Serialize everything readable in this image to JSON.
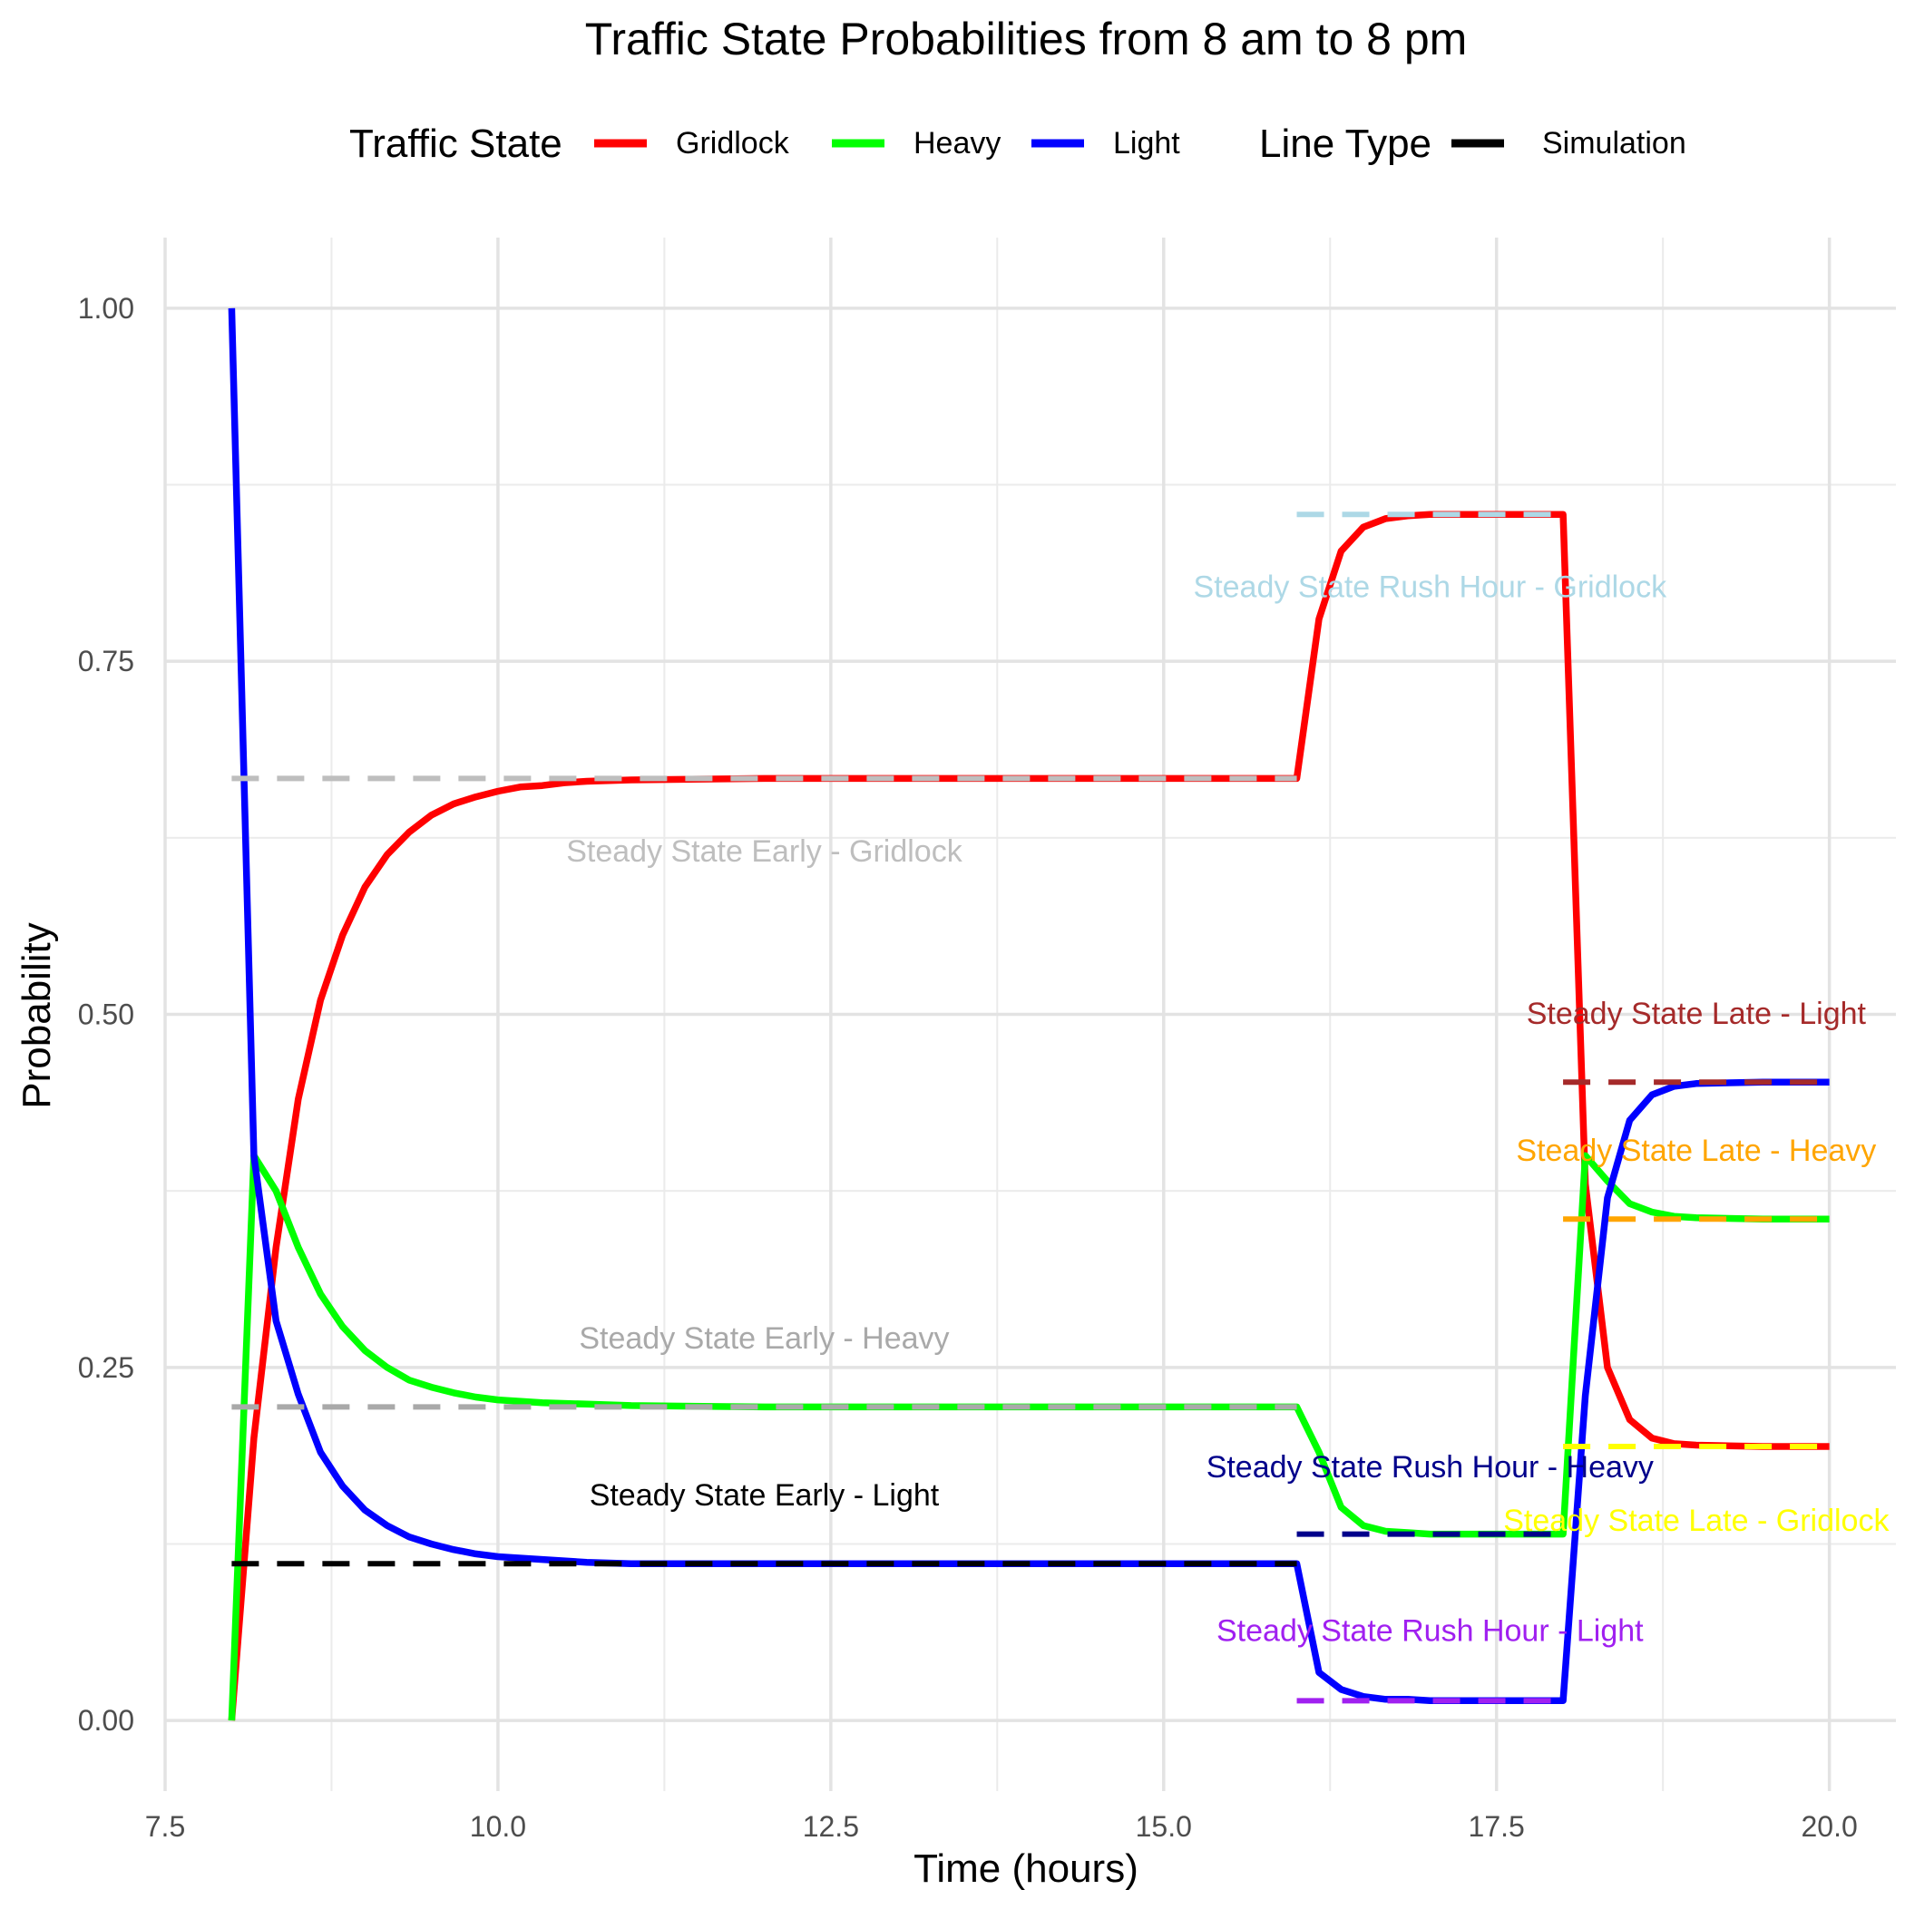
{
  "chart_data": {
    "type": "line",
    "title": "Traffic State Probabilities from 8 am to 8 pm",
    "xlabel": "Time (hours)",
    "ylabel": "Probability",
    "xlim": [
      7.5,
      20.5
    ],
    "ylim": [
      -0.05,
      1.05
    ],
    "x_ticks": [
      7.5,
      10.0,
      12.5,
      15.0,
      17.5,
      20.0
    ],
    "x_tick_labels": [
      "7.5",
      "10.0",
      "12.5",
      "15.0",
      "17.5",
      "20.0"
    ],
    "y_ticks": [
      0.0,
      0.25,
      0.5,
      0.75,
      1.0
    ],
    "y_tick_labels": [
      "0.00",
      "0.25",
      "0.50",
      "0.75",
      "1.00"
    ],
    "grid": true,
    "legend": {
      "position": "top",
      "traffic_state_title": "Traffic State",
      "traffic_state_items": [
        {
          "label": "Gridlock",
          "color": "#ff0000"
        },
        {
          "label": "Heavy",
          "color": "#00ff00"
        },
        {
          "label": "Light",
          "color": "#0000ff"
        }
      ],
      "line_type_title": "Line Type",
      "line_type_items": [
        {
          "label": "Simulation",
          "color": "#000000"
        }
      ]
    },
    "series": [
      {
        "name": "Gridlock",
        "color": "#ff0000",
        "x": [
          8.0,
          8.167,
          8.333,
          8.5,
          8.667,
          8.833,
          9.0,
          9.167,
          9.333,
          9.5,
          9.667,
          9.833,
          10.0,
          10.167,
          10.333,
          10.5,
          10.667,
          11.0,
          12.0,
          13.0,
          14.0,
          15.0,
          15.833,
          16.0,
          16.167,
          16.333,
          16.5,
          16.667,
          16.833,
          17.0,
          17.5,
          17.833,
          18.0,
          18.167,
          18.333,
          18.5,
          18.667,
          18.833,
          19.0,
          19.5,
          20.0
        ],
        "y": [
          0.0,
          0.2,
          0.335,
          0.44,
          0.51,
          0.556,
          0.59,
          0.613,
          0.629,
          0.641,
          0.649,
          0.654,
          0.658,
          0.661,
          0.662,
          0.664,
          0.665,
          0.666,
          0.667,
          0.667,
          0.667,
          0.667,
          0.667,
          0.667,
          0.78,
          0.828,
          0.845,
          0.851,
          0.853,
          0.854,
          0.854,
          0.854,
          0.854,
          0.38,
          0.25,
          0.213,
          0.2,
          0.196,
          0.195,
          0.194,
          0.194
        ]
      },
      {
        "name": "Heavy",
        "color": "#00ff00",
        "x": [
          8.0,
          8.167,
          8.333,
          8.5,
          8.667,
          8.833,
          9.0,
          9.167,
          9.333,
          9.5,
          9.667,
          9.833,
          10.0,
          10.333,
          10.667,
          11.0,
          12.0,
          13.0,
          14.0,
          15.0,
          15.833,
          16.0,
          16.167,
          16.333,
          16.5,
          16.667,
          16.833,
          17.0,
          17.5,
          17.833,
          18.0,
          18.167,
          18.333,
          18.5,
          18.667,
          18.833,
          19.0,
          19.5,
          20.0
        ],
        "y": [
          0.0,
          0.4,
          0.375,
          0.335,
          0.302,
          0.279,
          0.262,
          0.25,
          0.241,
          0.236,
          0.232,
          0.229,
          0.227,
          0.225,
          0.224,
          0.223,
          0.222,
          0.222,
          0.222,
          0.222,
          0.222,
          0.222,
          0.19,
          0.151,
          0.138,
          0.134,
          0.133,
          0.132,
          0.132,
          0.132,
          0.132,
          0.4,
          0.382,
          0.366,
          0.36,
          0.357,
          0.356,
          0.355,
          0.355
        ]
      },
      {
        "name": "Light",
        "color": "#0000ff",
        "x": [
          8.0,
          8.167,
          8.333,
          8.5,
          8.667,
          8.833,
          9.0,
          9.167,
          9.333,
          9.5,
          9.667,
          9.833,
          10.0,
          10.333,
          10.667,
          11.0,
          12.0,
          13.0,
          14.0,
          15.0,
          15.833,
          16.0,
          16.167,
          16.333,
          16.5,
          16.667,
          16.833,
          17.0,
          17.5,
          17.833,
          18.0,
          18.167,
          18.333,
          18.5,
          18.667,
          18.833,
          19.0,
          19.5,
          20.0
        ],
        "y": [
          1.0,
          0.4,
          0.283,
          0.231,
          0.19,
          0.166,
          0.149,
          0.138,
          0.13,
          0.125,
          0.121,
          0.118,
          0.116,
          0.114,
          0.112,
          0.111,
          0.111,
          0.111,
          0.111,
          0.111,
          0.111,
          0.111,
          0.034,
          0.022,
          0.017,
          0.015,
          0.015,
          0.014,
          0.014,
          0.014,
          0.014,
          0.23,
          0.37,
          0.425,
          0.443,
          0.449,
          0.451,
          0.452,
          0.452
        ]
      }
    ],
    "steady_state_lines": [
      {
        "label": "Steady State Early - Gridlock",
        "value": 0.667,
        "x_start": 8.0,
        "x_end": 16.0,
        "color": "#bebebe",
        "label_x": 12.0,
        "label_y": 0.616
      },
      {
        "label": "Steady State Early - Heavy",
        "value": 0.222,
        "x_start": 8.0,
        "x_end": 16.0,
        "color": "#a9a9a9",
        "label_x": 12.0,
        "label_y": 0.271
      },
      {
        "label": "Steady State Early - Light",
        "value": 0.111,
        "x_start": 8.0,
        "x_end": 16.0,
        "color": "#000000",
        "label_x": 12.0,
        "label_y": 0.16
      },
      {
        "label": "Steady State Rush Hour - Gridlock",
        "value": 0.854,
        "x_start": 16.0,
        "x_end": 18.0,
        "color": "#add8e6",
        "label_x": 17.0,
        "label_y": 0.803
      },
      {
        "label": "Steady State Rush Hour - Heavy",
        "value": 0.132,
        "x_start": 16.0,
        "x_end": 18.0,
        "color": "#00008b",
        "label_x": 17.0,
        "label_y": 0.18
      },
      {
        "label": "Steady State Rush Hour - Light",
        "value": 0.014,
        "x_start": 16.0,
        "x_end": 18.0,
        "color": "#a020f0",
        "label_x": 17.0,
        "label_y": 0.064
      },
      {
        "label": "Steady State Late - Light",
        "value": 0.452,
        "x_start": 18.0,
        "x_end": 20.0,
        "color": "#a52a2a",
        "label_x": 19.0,
        "label_y": 0.501
      },
      {
        "label": "Steady State Late - Heavy",
        "value": 0.355,
        "x_start": 18.0,
        "x_end": 20.0,
        "color": "#ffa500",
        "label_x": 19.0,
        "label_y": 0.404
      },
      {
        "label": "Steady State Late - Gridlock",
        "value": 0.194,
        "x_start": 18.0,
        "x_end": 20.0,
        "color": "#ffff00",
        "label_x": 19.0,
        "label_y": 0.142
      }
    ]
  }
}
